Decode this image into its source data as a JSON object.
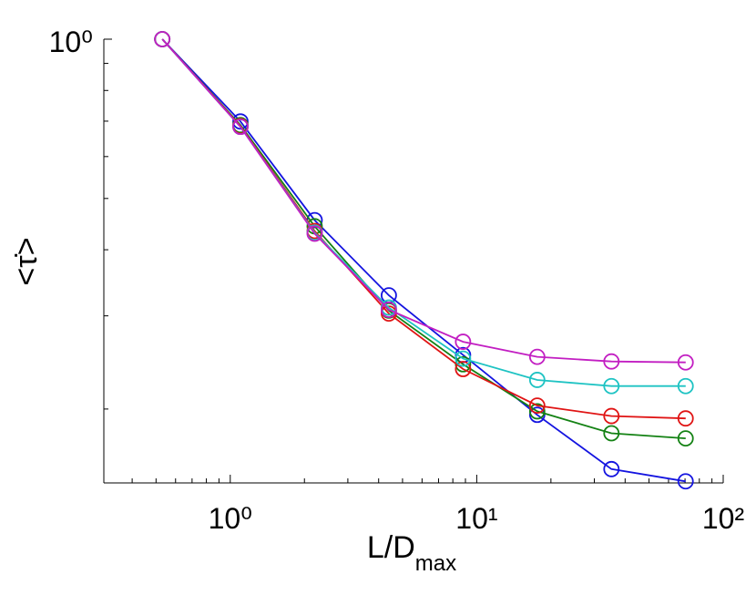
{
  "chart_data": {
    "type": "line",
    "xlabel": "L/D",
    "xlabel_sub": "max",
    "ylabel": "<τ̇>",
    "xscale": "log",
    "yscale": "log",
    "x": [
      0.53,
      1.1,
      2.2,
      4.4,
      8.8,
      17.6,
      35.2,
      70.4
    ],
    "series": [
      {
        "color": "#1414e0",
        "values": [
          1,
          0.699,
          0.455,
          0.328,
          0.253,
          0.195,
          0.154,
          0.146
        ]
      },
      {
        "color": "#148214",
        "values": [
          1,
          0.688,
          0.443,
          0.307,
          0.243,
          0.198,
          0.18,
          0.176
        ]
      },
      {
        "color": "#e01414",
        "values": [
          1,
          0.685,
          0.434,
          0.303,
          0.238,
          0.203,
          0.194,
          0.192
        ]
      },
      {
        "color": "#1ec3c3",
        "values": [
          1,
          0.683,
          0.431,
          0.311,
          0.249,
          0.227,
          0.221,
          0.221
        ]
      },
      {
        "color": "#c21ec2",
        "values": [
          1,
          0.683,
          0.429,
          0.308,
          0.268,
          0.251,
          0.246,
          0.245
        ]
      }
    ],
    "xlim": [
      0.307,
      100
    ],
    "ylim": [
      0.145,
      1
    ],
    "xticks": [
      {
        "value": 1,
        "label": "10⁰"
      },
      {
        "value": 10,
        "label": "10¹"
      },
      {
        "value": 100,
        "label": "10²"
      }
    ],
    "xminor": [
      0.4,
      0.5,
      0.6,
      0.7,
      0.8,
      0.9,
      2,
      3,
      4,
      5,
      6,
      7,
      8,
      9,
      20,
      30,
      40,
      50,
      60,
      70,
      80,
      90
    ],
    "yticks": [
      {
        "value": 1,
        "label": "10⁰"
      }
    ],
    "yminor": [
      0.2,
      0.3,
      0.4,
      0.5,
      0.6,
      0.7,
      0.8,
      0.9
    ],
    "grid": false
  }
}
